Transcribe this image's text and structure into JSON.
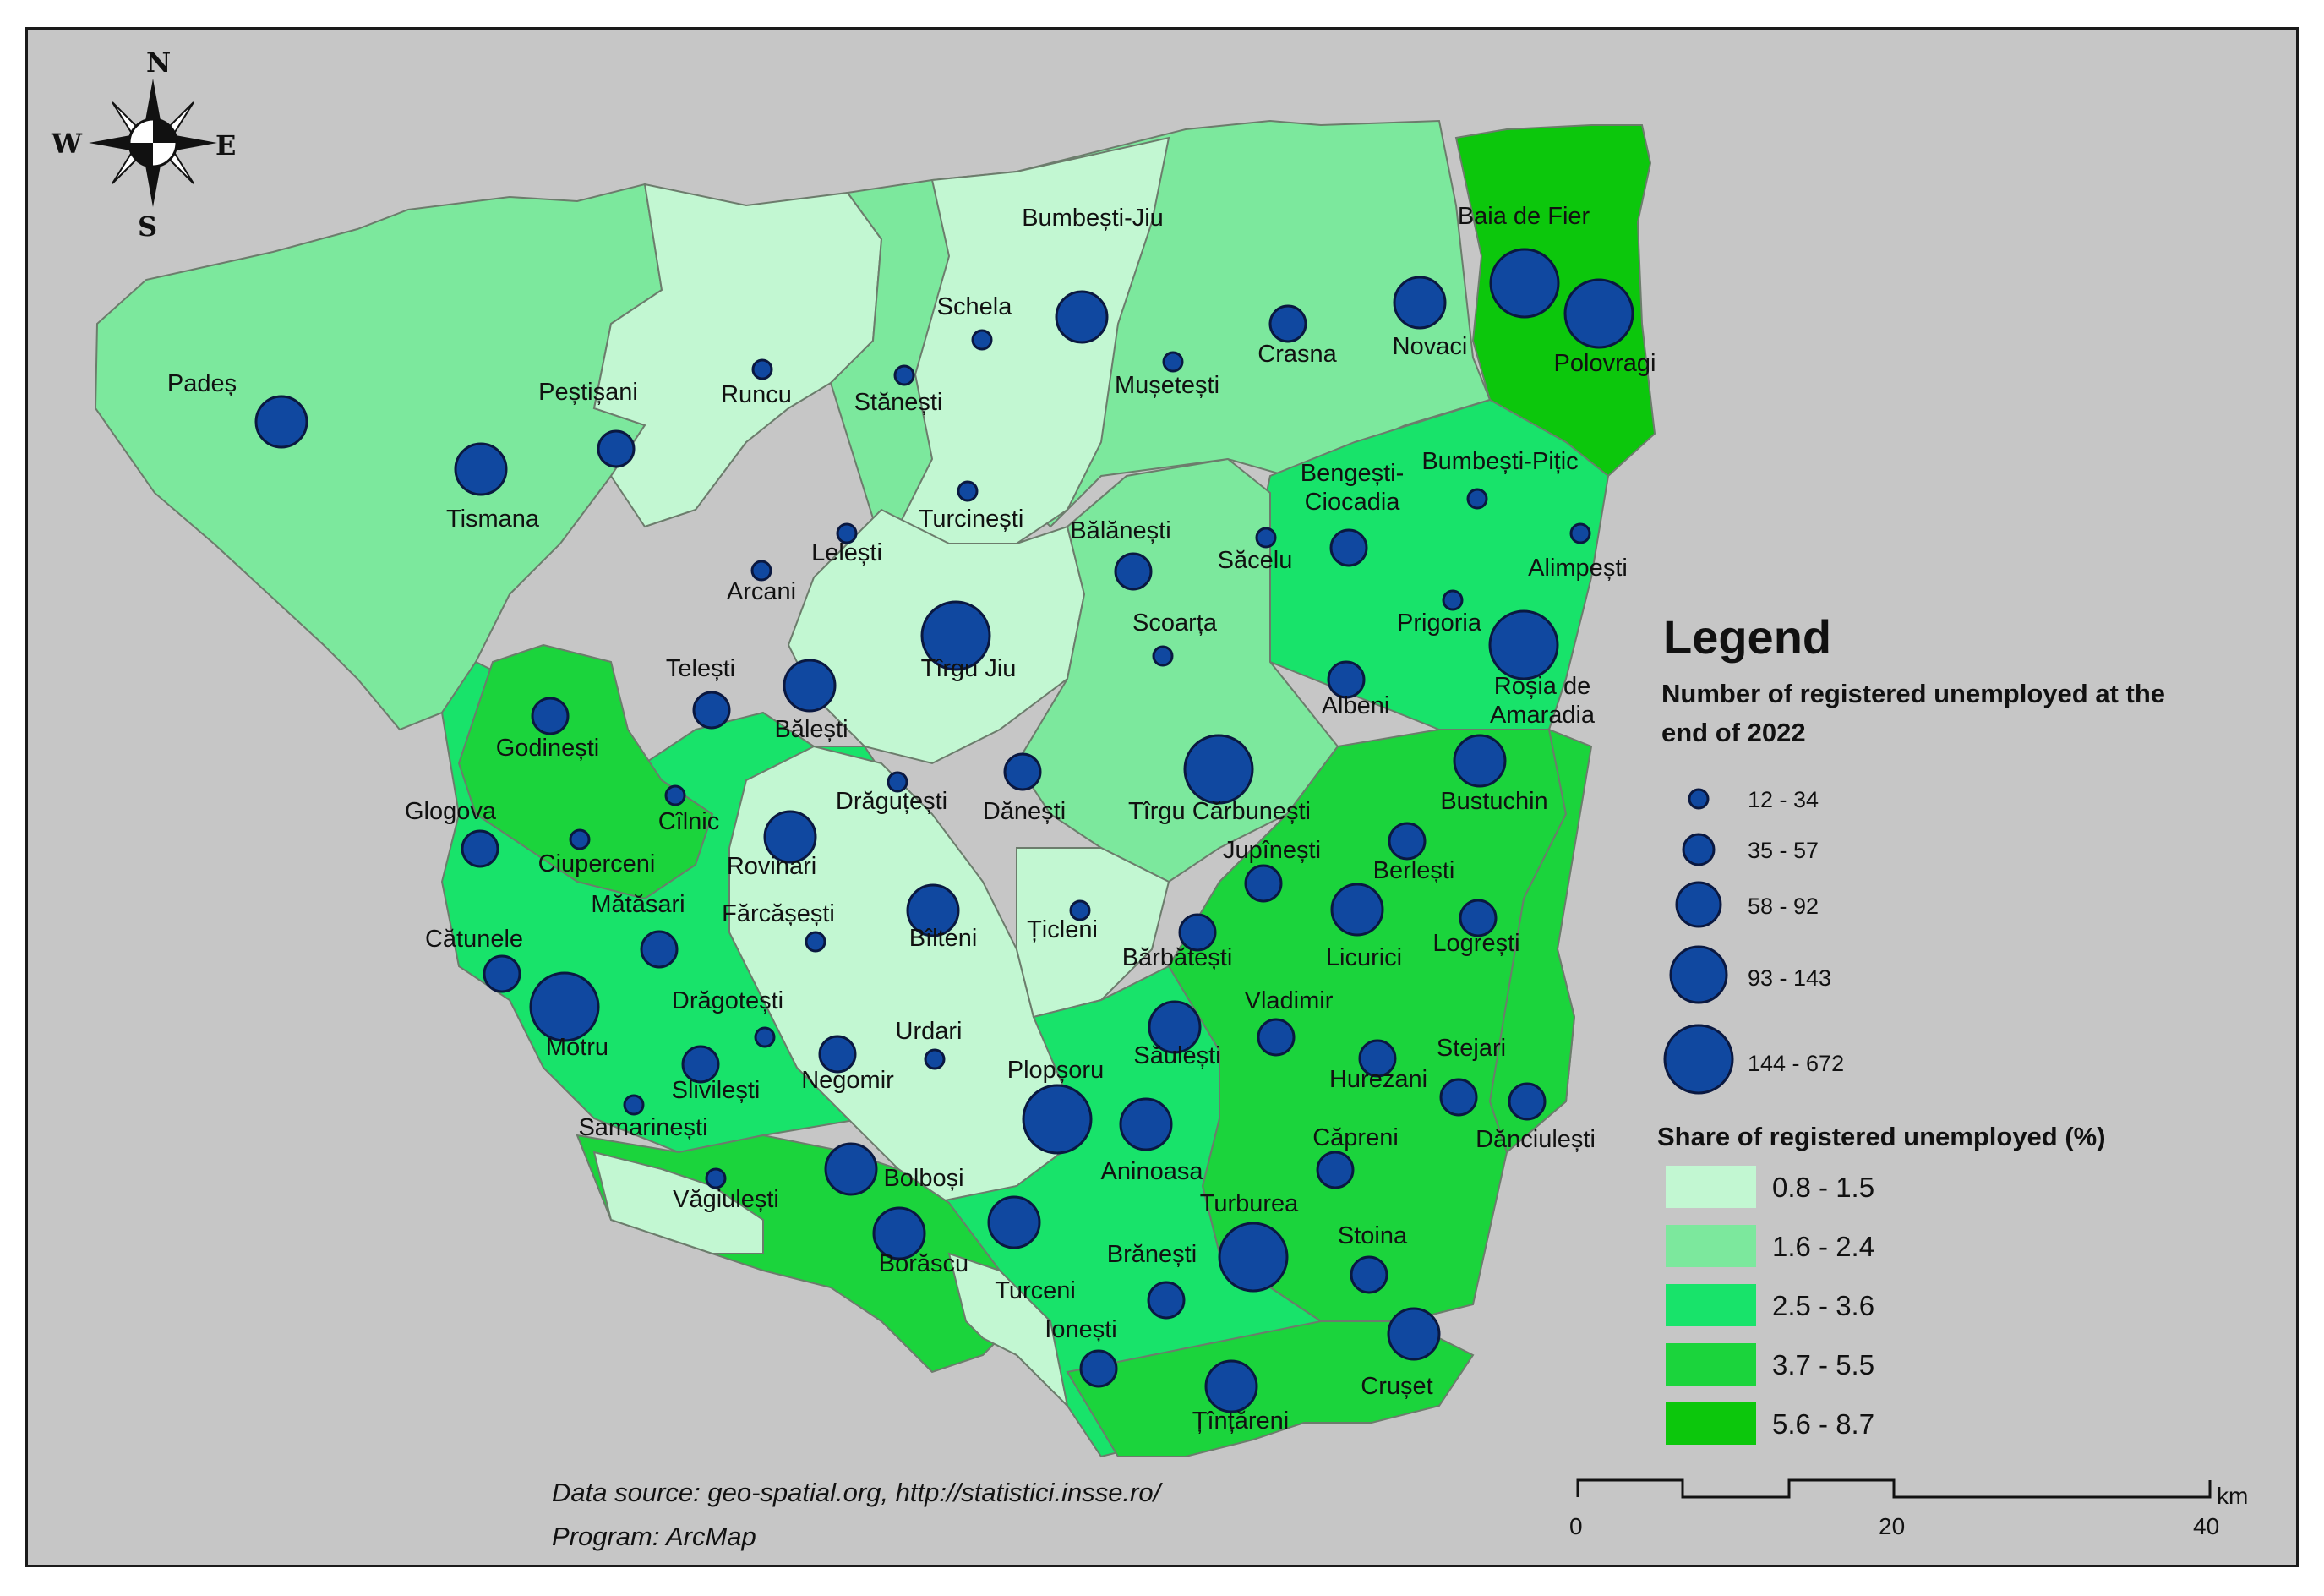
{
  "legend": {
    "title": "Legend",
    "circles_title_line1": "Number of registered unemployed at the",
    "circles_title_line2": "end of 2022",
    "circle_classes": [
      "12 - 34",
      "35 - 57",
      "58 - 92",
      "93 - 143",
      "144 - 672"
    ],
    "share_title": "Share of registered unemployed (%)",
    "share_classes": [
      {
        "label": "0.8 - 1.5",
        "color": "#c2f7d2"
      },
      {
        "label": "1.6 - 2.4",
        "color": "#7ce89d"
      },
      {
        "label": "2.5 - 3.6",
        "color": "#18e36a"
      },
      {
        "label": "3.7 - 5.5",
        "color": "#1bd43c"
      },
      {
        "label": "5.6 - 8.7",
        "color": "#0cc70c"
      }
    ]
  },
  "compass": {
    "n": "N",
    "s": "S",
    "e": "E",
    "w": "W"
  },
  "credits": {
    "line1": "Data source: geo-spatial.org, http://statistici.insse.ro/",
    "line2": "Program: ArcMap"
  },
  "scale": {
    "unit": "km",
    "ticks": [
      "0",
      "20",
      "40"
    ]
  },
  "colors": {
    "background": "#c6c6c6",
    "circle_fill": "#1048a0",
    "circle_stroke": "#0a1840",
    "border": "#6c7c6c"
  },
  "localities": [
    {
      "name": "Padeș",
      "cls": 4
    },
    {
      "name": "Tismana",
      "cls": 4
    },
    {
      "name": "Peștișani",
      "cls": 3
    },
    {
      "name": "Runcu",
      "cls": 1
    },
    {
      "name": "Schela",
      "cls": 1
    },
    {
      "name": "Bumbești-Jiu",
      "cls": 4
    },
    {
      "name": "Stănești",
      "cls": 1
    },
    {
      "name": "Mușetești",
      "cls": 1
    },
    {
      "name": "Crasna",
      "cls": 3
    },
    {
      "name": "Novaci",
      "cls": 4
    },
    {
      "name": "Baia de Fier",
      "cls": 5
    },
    {
      "name": "Polovragi",
      "cls": 5
    },
    {
      "name": "Turcinești",
      "cls": 1
    },
    {
      "name": "Lelești",
      "cls": 1
    },
    {
      "name": "Arcani",
      "cls": 1
    },
    {
      "name": "Bălănești",
      "cls": 3
    },
    {
      "name": "Săcelu",
      "cls": 1
    },
    {
      "name": "Bengești-Ciocadia",
      "cls": 3
    },
    {
      "name": "Bumbești-Pițic",
      "cls": 1
    },
    {
      "name": "Alimpești",
      "cls": 1
    },
    {
      "name": "Prigoria",
      "cls": 1
    },
    {
      "name": "Roșia de Amaradia",
      "cls": 5
    },
    {
      "name": "Tîrgu Jiu",
      "cls": 5
    },
    {
      "name": "Scoarța",
      "cls": 1
    },
    {
      "name": "Telești",
      "cls": 3
    },
    {
      "name": "Bălești",
      "cls": 4
    },
    {
      "name": "Albeni",
      "cls": 3
    },
    {
      "name": "Godinești",
      "cls": 3
    },
    {
      "name": "Drăguțești",
      "cls": 1
    },
    {
      "name": "Dănești",
      "cls": 3
    },
    {
      "name": "Tîrgu Cărbunești",
      "cls": 5
    },
    {
      "name": "Bustuchin",
      "cls": 4
    },
    {
      "name": "Glogova",
      "cls": 3
    },
    {
      "name": "Cîlnic",
      "cls": 1
    },
    {
      "name": "Ciuperceni",
      "cls": 1
    },
    {
      "name": "Rovinari",
      "cls": 4
    },
    {
      "name": "Jupînești",
      "cls": 3
    },
    {
      "name": "Berlești",
      "cls": 3
    },
    {
      "name": "Mătăsari",
      "cls": 3
    },
    {
      "name": "Fărcășești",
      "cls": 1
    },
    {
      "name": "Bîlteni",
      "cls": 4
    },
    {
      "name": "Țicleni",
      "cls": 1
    },
    {
      "name": "Licurici",
      "cls": 4
    },
    {
      "name": "Logrești",
      "cls": 3
    },
    {
      "name": "Cătunele",
      "cls": 3
    },
    {
      "name": "Bărbătești",
      "cls": 3
    },
    {
      "name": "Motru",
      "cls": 5
    },
    {
      "name": "Drăgotești",
      "cls": 1
    },
    {
      "name": "Urdari",
      "cls": 1
    },
    {
      "name": "Vladimir",
      "cls": 3
    },
    {
      "name": "Săulești",
      "cls": 4
    },
    {
      "name": "Slivilești",
      "cls": 3
    },
    {
      "name": "Negomir",
      "cls": 3
    },
    {
      "name": "Plopșoru",
      "cls": 5
    },
    {
      "name": "Hurezani",
      "cls": 3
    },
    {
      "name": "Stejari",
      "cls": 3
    },
    {
      "name": "Dănciulești",
      "cls": 3
    },
    {
      "name": "Samarinești",
      "cls": 1
    },
    {
      "name": "Aninoasa",
      "cls": 4
    },
    {
      "name": "Căpreni",
      "cls": 3
    },
    {
      "name": "Văgiulești",
      "cls": 1
    },
    {
      "name": "Bolboși",
      "cls": 4
    },
    {
      "name": "Turburea",
      "cls": 5
    },
    {
      "name": "Stoina",
      "cls": 3
    },
    {
      "name": "Borăscu",
      "cls": 4
    },
    {
      "name": "Turceni",
      "cls": 4
    },
    {
      "name": "Brănești",
      "cls": 3
    },
    {
      "name": "Crușet",
      "cls": 4
    },
    {
      "name": "Ionești",
      "cls": 3
    },
    {
      "name": "Țînțăreni",
      "cls": 4
    }
  ]
}
